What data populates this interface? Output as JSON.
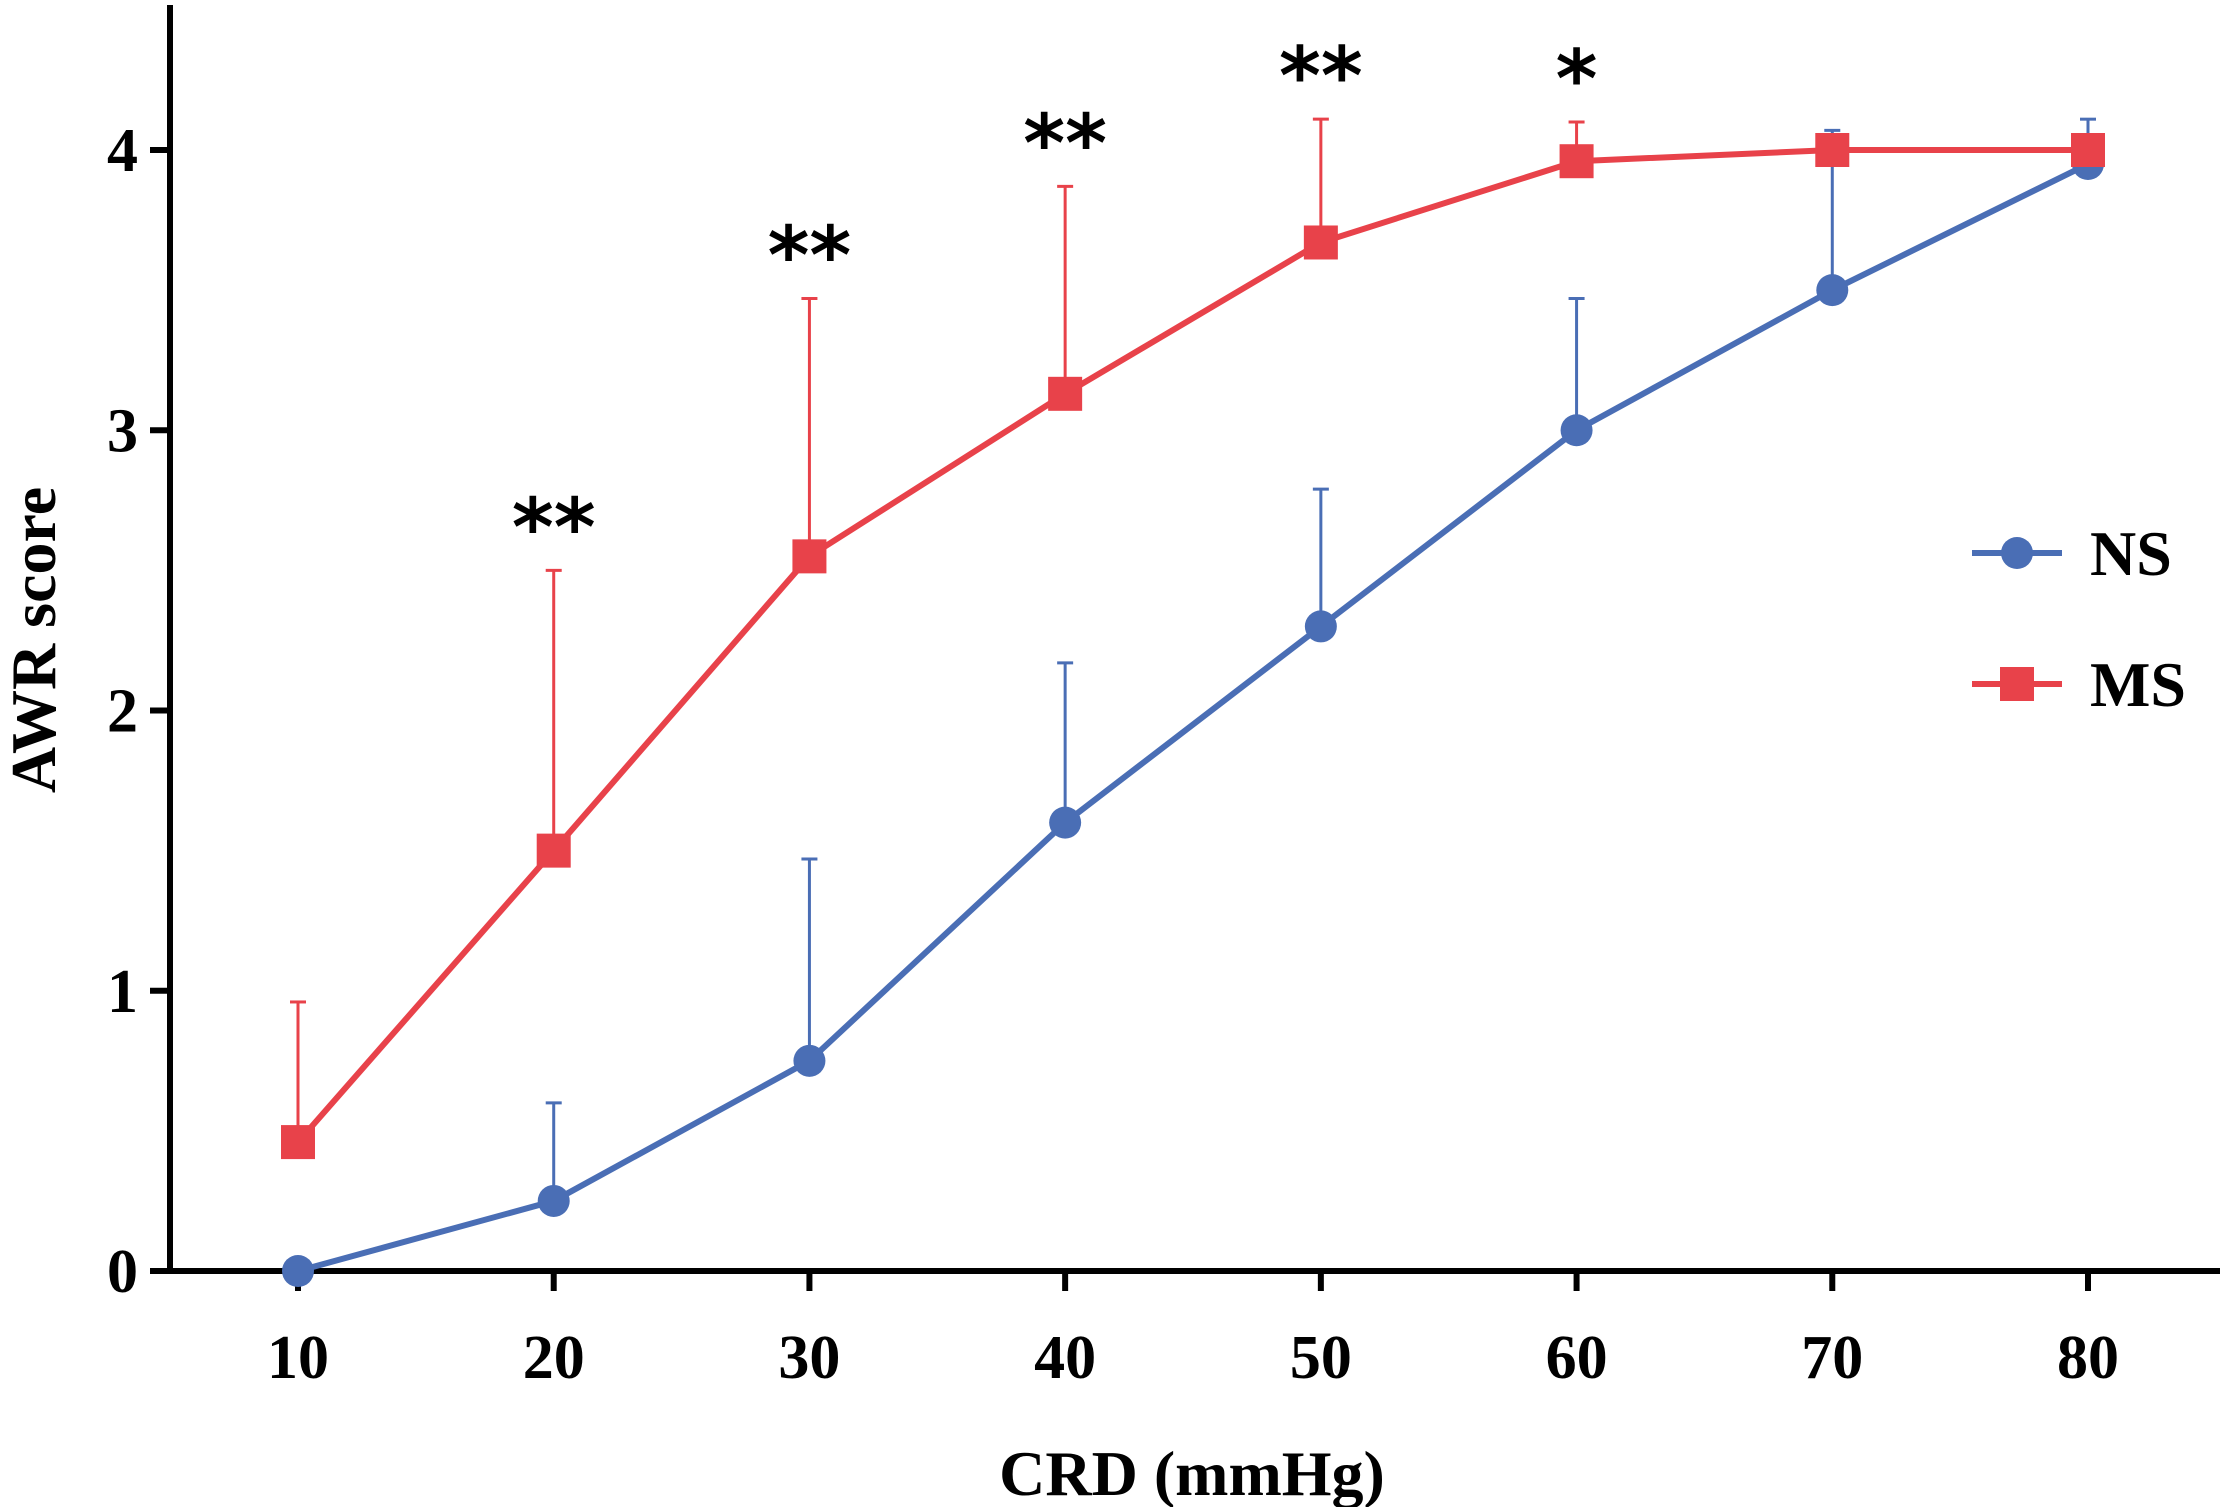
{
  "chart_data": {
    "type": "line",
    "title": "",
    "xlabel": "CRD (mmHg)",
    "ylabel": "AWR score",
    "x": [
      10,
      20,
      30,
      40,
      50,
      60,
      70,
      80
    ],
    "xlim": [
      5,
      85
    ],
    "ylim": [
      0,
      4.5
    ],
    "xticks": [
      "10",
      "20",
      "30",
      "40",
      "50",
      "60",
      "70",
      "80"
    ],
    "yticks": [
      "0",
      "1",
      "2",
      "3",
      "4"
    ],
    "grid": false,
    "legend_position": "right",
    "series": [
      {
        "name": "NS",
        "color": "#4a6eb5",
        "marker": "circle",
        "values": [
          0,
          0.25,
          0.75,
          1.6,
          2.3,
          3.0,
          3.5,
          3.95
        ],
        "error_upper": [
          0,
          0.35,
          0.72,
          0.57,
          0.49,
          0.47,
          0.57,
          0.16
        ]
      },
      {
        "name": "MS",
        "color": "#e8424a",
        "marker": "square",
        "values": [
          0.46,
          1.5,
          2.55,
          3.13,
          3.67,
          3.96,
          4.0,
          4.0
        ],
        "error_upper": [
          0.5,
          1.0,
          0.92,
          0.74,
          0.44,
          0.14,
          0,
          0
        ]
      }
    ],
    "significance": [
      {
        "x": 20,
        "label": "**"
      },
      {
        "x": 30,
        "label": "**"
      },
      {
        "x": 40,
        "label": "**"
      },
      {
        "x": 50,
        "label": "**"
      },
      {
        "x": 60,
        "label": "*"
      }
    ]
  }
}
